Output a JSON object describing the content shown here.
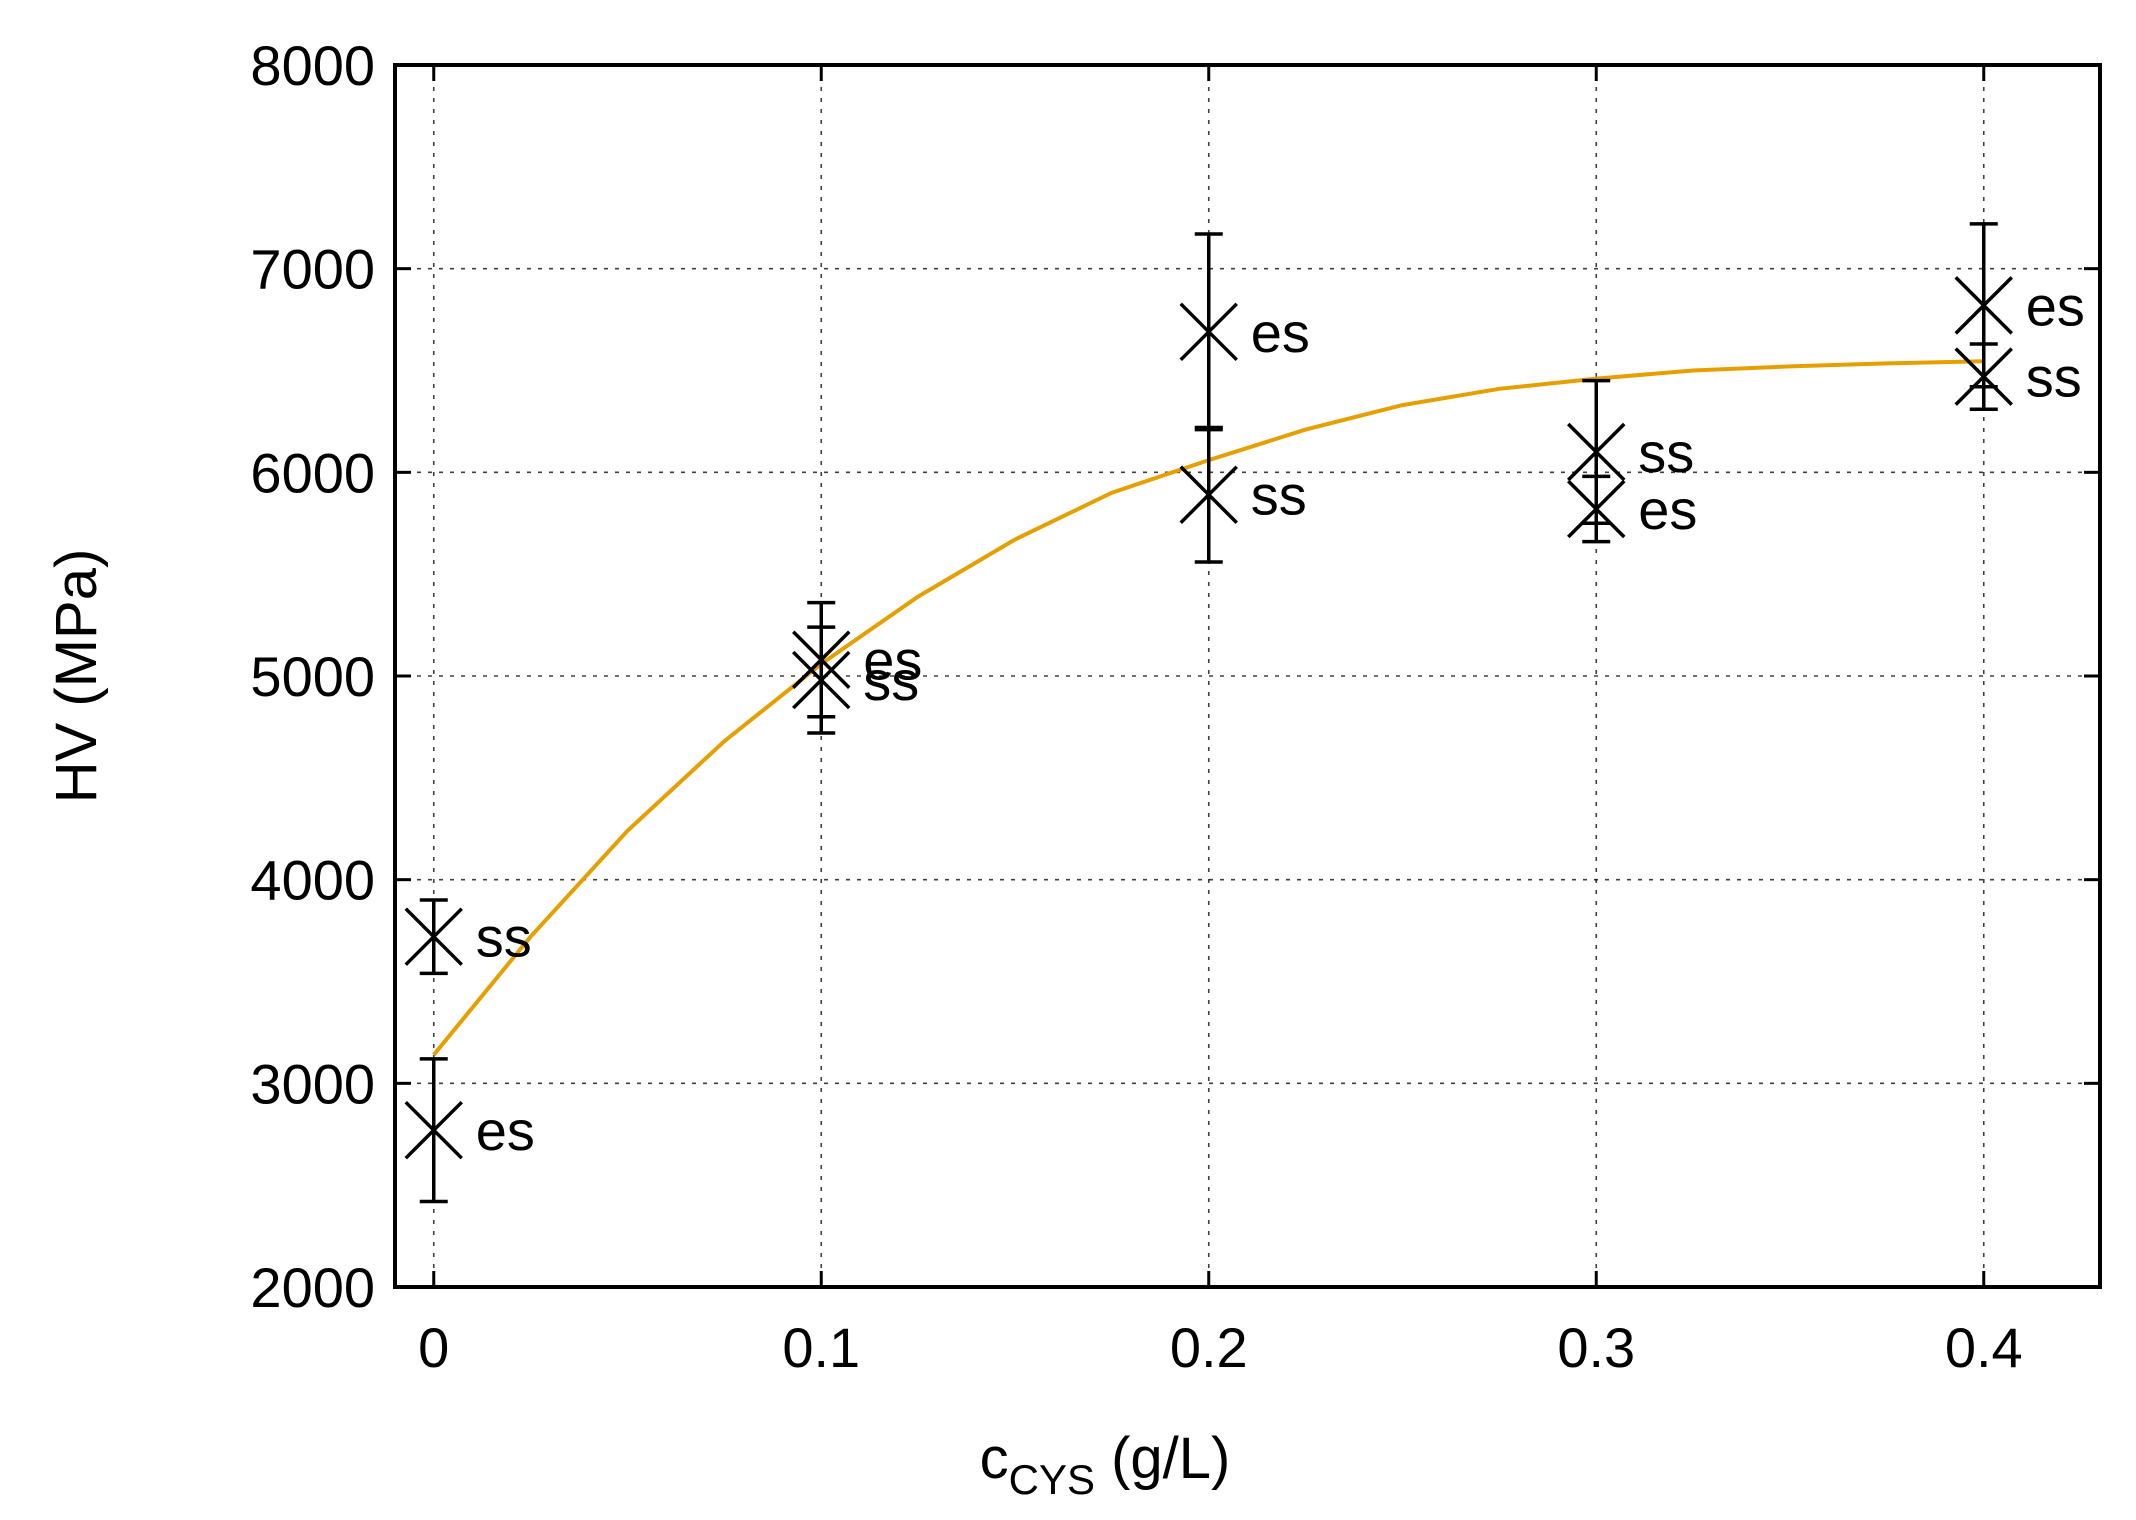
{
  "chart_data": {
    "type": "scatter",
    "xlabel_main": "c",
    "xlabel_sub": "CYS",
    "xlabel_unit": " (g/L)",
    "ylabel": "HV (MPa)",
    "xlim": [
      -0.01,
      0.43
    ],
    "ylim": [
      2000,
      8000
    ],
    "x_ticks": [
      0,
      0.1,
      0.2,
      0.3,
      0.4
    ],
    "x_tick_labels": [
      "0",
      "0.1",
      "0.2",
      "0.3",
      "0.4"
    ],
    "y_ticks": [
      2000,
      3000,
      4000,
      5000,
      6000,
      7000,
      8000
    ],
    "y_tick_labels": [
      "2000",
      "3000",
      "4000",
      "5000",
      "6000",
      "7000",
      "8000"
    ],
    "grid": true,
    "points": [
      {
        "x": 0,
        "y": 2770,
        "err": 350,
        "label": "es"
      },
      {
        "x": 0,
        "y": 3720,
        "err": 180,
        "label": "ss"
      },
      {
        "x": 0.1,
        "y": 5080,
        "err": 280,
        "label": "es"
      },
      {
        "x": 0.1,
        "y": 4980,
        "err": 260,
        "label": "ss"
      },
      {
        "x": 0.2,
        "y": 6690,
        "err": 480,
        "label": "es"
      },
      {
        "x": 0.2,
        "y": 5890,
        "err": 330,
        "label": "ss"
      },
      {
        "x": 0.3,
        "y": 5820,
        "err": 160,
        "label": "es"
      },
      {
        "x": 0.3,
        "y": 6100,
        "err": 350,
        "label": "ss"
      },
      {
        "x": 0.4,
        "y": 6820,
        "err": 400,
        "label": "es"
      },
      {
        "x": 0.4,
        "y": 6470,
        "err": 160,
        "label": "ss"
      }
    ],
    "fit_line": {
      "color": "#e69f00",
      "x": [
        0,
        0.025,
        0.05,
        0.075,
        0.1,
        0.125,
        0.15,
        0.175,
        0.2,
        0.225,
        0.25,
        0.275,
        0.3,
        0.325,
        0.35,
        0.375,
        0.4
      ],
      "y": [
        3140,
        3720,
        4240,
        4680,
        5060,
        5390,
        5670,
        5900,
        6060,
        6210,
        6330,
        6410,
        6460,
        6500,
        6520,
        6535,
        6545
      ]
    }
  }
}
